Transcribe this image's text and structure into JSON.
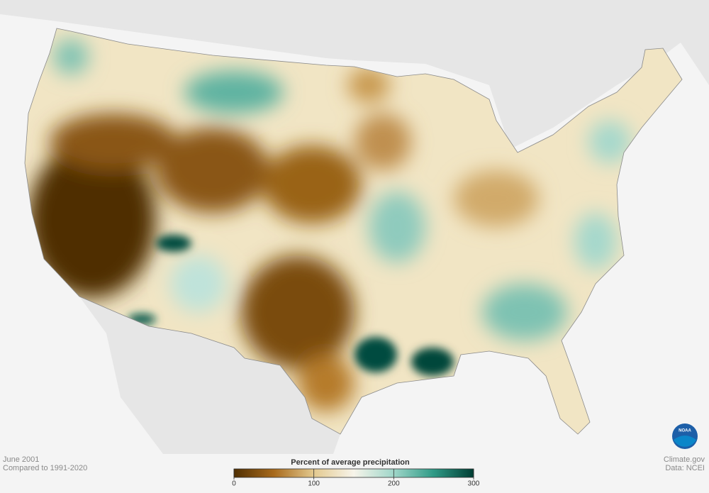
{
  "header": {
    "period": "June 2001",
    "baseline": "Compared to 1991-2020"
  },
  "legend": {
    "title": "Percent of average precipitation",
    "lim": [
      0,
      300
    ],
    "ticks": [
      0,
      100,
      200,
      300
    ],
    "colors": [
      "#4f2f02",
      "#a86a1c",
      "#e3c98f",
      "#f7f4ea",
      "#9fd6c9",
      "#2f9a86",
      "#003d33"
    ]
  },
  "credits": {
    "site": "Climate.gov",
    "source": "Data: NCEI",
    "logo": "NOAA"
  }
}
